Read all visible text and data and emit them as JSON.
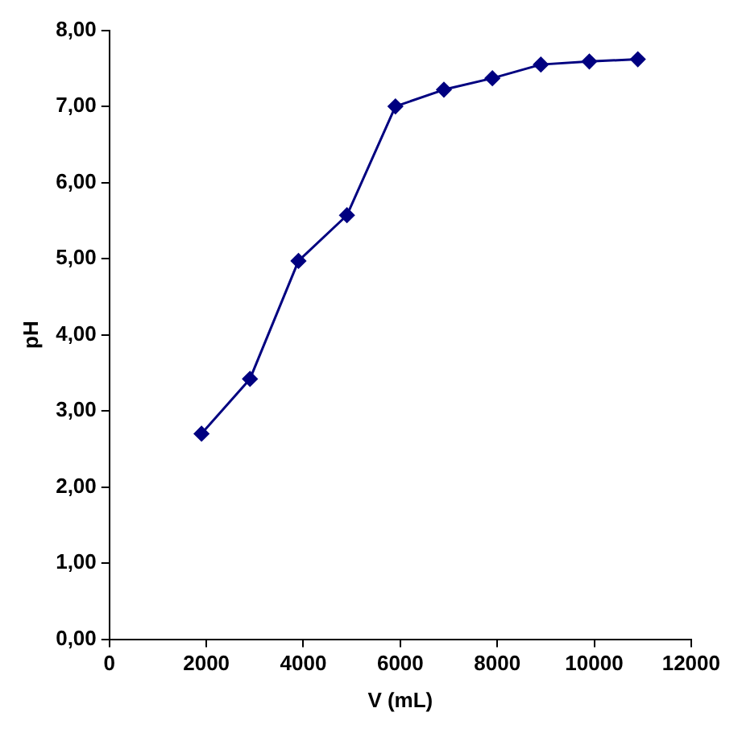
{
  "chart_data": {
    "type": "line",
    "xlabel": "V (mL)",
    "ylabel": "pH",
    "x": [
      1900,
      2900,
      3900,
      4900,
      5900,
      6900,
      7900,
      8900,
      9900,
      10900
    ],
    "series": [
      {
        "color": "#000080",
        "values": [
          2.7,
          3.42,
          4.97,
          5.57,
          7.0,
          7.22,
          7.37,
          7.55,
          7.59,
          7.62
        ]
      }
    ],
    "xlim": [
      0,
      12000
    ],
    "xticks": [
      0,
      2000,
      4000,
      6000,
      8000,
      10000,
      12000
    ],
    "ylim": [
      0,
      8
    ],
    "yticks": [
      {
        "value": 0,
        "label": "0,00"
      },
      {
        "value": 1,
        "label": "1,00"
      },
      {
        "value": 2,
        "label": "2,00"
      },
      {
        "value": 3,
        "label": "3,00"
      },
      {
        "value": 4,
        "label": "4,00"
      },
      {
        "value": 5,
        "label": "5,00"
      },
      {
        "value": 6,
        "label": "6,00"
      },
      {
        "value": 7,
        "label": "7,00"
      },
      {
        "value": 8,
        "label": "8,00"
      }
    ],
    "grid": false,
    "legend": false,
    "marker": "diamond",
    "line_style": "solid"
  }
}
